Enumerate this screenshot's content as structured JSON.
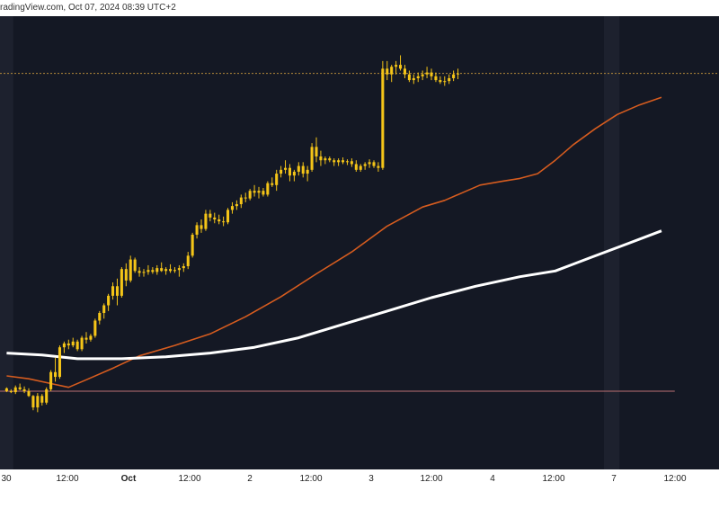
{
  "header": {
    "watermark": "radingView.com, Oct 07, 2024 08:39 UTC+2"
  },
  "colors": {
    "background": "#141824",
    "panel_shade": "#1d212e",
    "candle": "#f5c518",
    "ema_fast": "#d65c1f",
    "ema_slow": "#ffffff",
    "dotted_level": "#b58a3a",
    "support_level": "#9b5f63"
  },
  "chart_data": {
    "type": "candlestick",
    "x_ticks": [
      {
        "label": "30",
        "bold": false
      },
      {
        "label": "12:00",
        "bold": false
      },
      {
        "label": "Oct",
        "bold": true
      },
      {
        "label": "12:00",
        "bold": false
      },
      {
        "label": "2",
        "bold": false
      },
      {
        "label": "12:00",
        "bold": false
      },
      {
        "label": "3",
        "bold": false
      },
      {
        "label": "12:00",
        "bold": false
      },
      {
        "label": "4",
        "bold": false
      },
      {
        "label": "12:00",
        "bold": false
      },
      {
        "label": "7",
        "bold": false
      },
      {
        "label": "12:00",
        "bold": false
      }
    ],
    "series": [
      {
        "kind": "candles",
        "values": [
          [
            0.23,
            0.24,
            0.19,
            0.2
          ],
          [
            0.2,
            0.22,
            0.18,
            0.19
          ],
          [
            0.19,
            0.26,
            0.17,
            0.24
          ],
          [
            0.24,
            0.28,
            0.21,
            0.22
          ],
          [
            0.22,
            0.25,
            0.18,
            0.2
          ],
          [
            0.2,
            0.23,
            0.14,
            0.15
          ],
          [
            0.15,
            0.16,
            0.0,
            0.03
          ],
          [
            0.03,
            0.18,
            -0.02,
            0.15
          ],
          [
            0.15,
            0.17,
            0.05,
            0.08
          ],
          [
            0.08,
            0.24,
            0.06,
            0.22
          ],
          [
            0.22,
            0.42,
            0.2,
            0.4
          ],
          [
            0.4,
            0.55,
            0.3,
            0.35
          ],
          [
            0.35,
            0.68,
            0.33,
            0.66
          ],
          [
            0.66,
            0.72,
            0.6,
            0.7
          ],
          [
            0.7,
            0.74,
            0.64,
            0.68
          ],
          [
            0.68,
            0.76,
            0.66,
            0.72
          ],
          [
            0.72,
            0.74,
            0.62,
            0.64
          ],
          [
            0.64,
            0.78,
            0.62,
            0.76
          ],
          [
            0.76,
            0.82,
            0.7,
            0.74
          ],
          [
            0.74,
            0.8,
            0.72,
            0.78
          ],
          [
            0.78,
            0.96,
            0.76,
            0.94
          ],
          [
            0.94,
            1.04,
            0.9,
            1.02
          ],
          [
            1.02,
            1.12,
            0.96,
            1.1
          ],
          [
            1.1,
            1.22,
            1.04,
            1.2
          ],
          [
            1.2,
            1.34,
            1.16,
            1.3
          ],
          [
            1.3,
            1.38,
            1.1,
            1.2
          ],
          [
            1.2,
            1.5,
            1.18,
            1.48
          ],
          [
            1.48,
            1.54,
            1.3,
            1.36
          ],
          [
            1.36,
            1.62,
            1.34,
            1.58
          ],
          [
            1.58,
            1.6,
            1.44,
            1.46
          ],
          [
            1.46,
            1.5,
            1.4,
            1.44
          ],
          [
            1.44,
            1.48,
            1.4,
            1.45
          ],
          [
            1.45,
            1.52,
            1.42,
            1.47
          ],
          [
            1.47,
            1.5,
            1.43,
            1.45
          ],
          [
            1.45,
            1.52,
            1.42,
            1.49
          ],
          [
            1.49,
            1.55,
            1.45,
            1.46
          ],
          [
            1.46,
            1.5,
            1.42,
            1.48
          ],
          [
            1.48,
            1.53,
            1.44,
            1.46
          ],
          [
            1.46,
            1.5,
            1.44,
            1.47
          ],
          [
            1.47,
            1.52,
            1.4,
            1.49
          ],
          [
            1.49,
            1.54,
            1.45,
            1.51
          ],
          [
            1.51,
            1.66,
            1.48,
            1.62
          ],
          [
            1.62,
            1.86,
            1.6,
            1.84
          ],
          [
            1.84,
            1.97,
            1.8,
            1.94
          ],
          [
            1.94,
            2.0,
            1.86,
            1.9
          ],
          [
            1.9,
            2.1,
            1.88,
            2.06
          ],
          [
            2.06,
            2.1,
            1.98,
            2.02
          ],
          [
            2.02,
            2.07,
            1.96,
            2.0
          ],
          [
            2.0,
            2.05,
            1.95,
            1.98
          ],
          [
            1.98,
            2.03,
            1.93,
            1.97
          ],
          [
            1.97,
            2.12,
            1.95,
            2.1
          ],
          [
            2.1,
            2.18,
            2.06,
            2.14
          ],
          [
            2.14,
            2.2,
            2.1,
            2.16
          ],
          [
            2.16,
            2.26,
            2.12,
            2.23
          ],
          [
            2.23,
            2.28,
            2.18,
            2.22
          ],
          [
            2.22,
            2.32,
            2.2,
            2.3
          ],
          [
            2.3,
            2.36,
            2.24,
            2.28
          ],
          [
            2.28,
            2.34,
            2.22,
            2.3
          ],
          [
            2.3,
            2.33,
            2.24,
            2.26
          ],
          [
            2.26,
            2.4,
            2.24,
            2.38
          ],
          [
            2.38,
            2.44,
            2.34,
            2.36
          ],
          [
            2.36,
            2.52,
            2.3,
            2.48
          ],
          [
            2.48,
            2.56,
            2.44,
            2.52
          ],
          [
            2.52,
            2.62,
            2.48,
            2.54
          ],
          [
            2.54,
            2.58,
            2.4,
            2.46
          ],
          [
            2.46,
            2.52,
            2.4,
            2.5
          ],
          [
            2.5,
            2.6,
            2.46,
            2.56
          ],
          [
            2.56,
            2.6,
            2.44,
            2.48
          ],
          [
            2.48,
            2.56,
            2.4,
            2.52
          ],
          [
            2.52,
            2.8,
            2.5,
            2.76
          ],
          [
            2.76,
            2.86,
            2.6,
            2.66
          ],
          [
            2.66,
            2.72,
            2.56,
            2.62
          ],
          [
            2.62,
            2.66,
            2.58,
            2.64
          ],
          [
            2.64,
            2.66,
            2.6,
            2.62
          ],
          [
            2.62,
            2.64,
            2.56,
            2.6
          ],
          [
            2.6,
            2.64,
            2.56,
            2.62
          ],
          [
            2.62,
            2.65,
            2.58,
            2.6
          ],
          [
            2.6,
            2.63,
            2.57,
            2.61
          ],
          [
            2.61,
            2.64,
            2.55,
            2.58
          ],
          [
            2.58,
            2.62,
            2.5,
            2.52
          ],
          [
            2.52,
            2.58,
            2.5,
            2.56
          ],
          [
            2.56,
            2.6,
            2.52,
            2.58
          ],
          [
            2.58,
            2.63,
            2.54,
            2.6
          ],
          [
            2.6,
            2.62,
            2.54,
            2.56
          ],
          [
            2.56,
            2.6,
            2.5,
            2.54
          ],
          [
            2.54,
            3.66,
            2.52,
            3.58
          ],
          [
            3.58,
            3.66,
            3.46,
            3.52
          ],
          [
            3.52,
            3.62,
            3.44,
            3.6
          ],
          [
            3.6,
            3.66,
            3.52,
            3.62
          ],
          [
            3.62,
            3.72,
            3.56,
            3.58
          ],
          [
            3.58,
            3.62,
            3.48,
            3.52
          ],
          [
            3.52,
            3.56,
            3.44,
            3.46
          ],
          [
            3.46,
            3.52,
            3.42,
            3.48
          ],
          [
            3.48,
            3.54,
            3.44,
            3.5
          ],
          [
            3.5,
            3.56,
            3.46,
            3.52
          ],
          [
            3.52,
            3.6,
            3.48,
            3.54
          ],
          [
            3.54,
            3.58,
            3.46,
            3.5
          ],
          [
            3.5,
            3.54,
            3.44,
            3.46
          ],
          [
            3.46,
            3.5,
            3.42,
            3.44
          ],
          [
            3.44,
            3.5,
            3.4,
            3.45
          ],
          [
            3.45,
            3.52,
            3.42,
            3.48
          ],
          [
            3.48,
            3.56,
            3.45,
            3.52
          ],
          [
            3.52,
            3.58,
            3.47,
            3.53
          ]
        ]
      },
      {
        "kind": "line",
        "values": [
          [
            0,
            0.36
          ],
          [
            5,
            0.33
          ],
          [
            10,
            0.28
          ],
          [
            14,
            0.24
          ],
          [
            18,
            0.32
          ],
          [
            24,
            0.44
          ],
          [
            30,
            0.57
          ],
          [
            38,
            0.68
          ],
          [
            46,
            0.8
          ],
          [
            54,
            0.98
          ],
          [
            62,
            1.19
          ],
          [
            70,
            1.43
          ],
          [
            78,
            1.66
          ],
          [
            86,
            1.93
          ],
          [
            94,
            2.13
          ],
          [
            99,
            2.2
          ],
          [
            103,
            2.28
          ],
          [
            107,
            2.36
          ],
          [
            112,
            2.4
          ],
          [
            116,
            2.43
          ],
          [
            120,
            2.48
          ],
          [
            124,
            2.62
          ],
          [
            128,
            2.78
          ],
          [
            133,
            2.95
          ],
          [
            138,
            3.1
          ],
          [
            143,
            3.2
          ],
          [
            148,
            3.28
          ]
        ]
      },
      {
        "kind": "line",
        "values": [
          [
            0,
            0.6
          ],
          [
            8,
            0.58
          ],
          [
            16,
            0.54
          ],
          [
            26,
            0.54
          ],
          [
            36,
            0.56
          ],
          [
            46,
            0.6
          ],
          [
            56,
            0.66
          ],
          [
            66,
            0.76
          ],
          [
            76,
            0.9
          ],
          [
            86,
            1.04
          ],
          [
            96,
            1.18
          ],
          [
            106,
            1.3
          ],
          [
            116,
            1.4
          ],
          [
            124,
            1.46
          ],
          [
            132,
            1.6
          ],
          [
            140,
            1.74
          ],
          [
            148,
            1.88
          ]
        ]
      }
    ],
    "levels": [
      {
        "price": 3.53,
        "style": "dotted"
      },
      {
        "price": 0.2,
        "style": "solid"
      }
    ],
    "highlight_bands": [
      {
        "from": -2,
        "to": 1.5
      },
      {
        "from": 135,
        "to": 138.5
      }
    ],
    "x_range": [
      -1.5,
      161
    ],
    "y_range": [
      -0.62,
      4.13
    ],
    "grid": false,
    "legend": "none"
  }
}
